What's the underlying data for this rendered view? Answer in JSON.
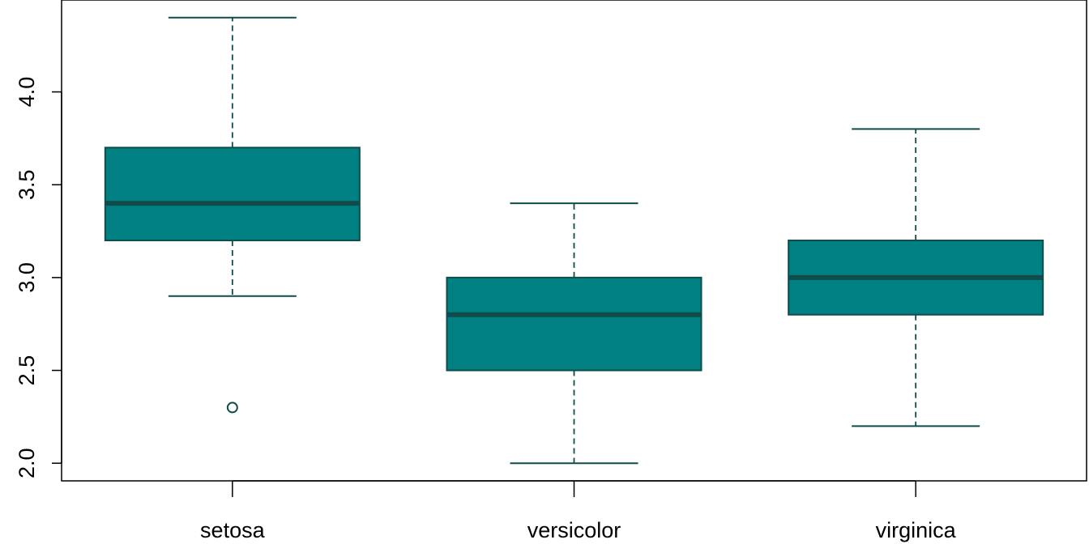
{
  "chart_data": {
    "type": "box",
    "title": "",
    "xlabel": "",
    "ylabel": "",
    "categories": [
      "setosa",
      "versicolor",
      "virginica"
    ],
    "ylim": [
      1.905,
      4.495
    ],
    "yticks": [
      2.0,
      2.5,
      3.0,
      3.5,
      4.0
    ],
    "ytick_labels": [
      "2.0",
      "2.5",
      "3.0",
      "3.5",
      "4.0"
    ],
    "boxes": [
      {
        "category": "setosa",
        "whisker_low": 2.9,
        "q1": 3.2,
        "median": 3.4,
        "q3": 3.7,
        "whisker_high": 4.4,
        "outliers": [
          2.3
        ]
      },
      {
        "category": "versicolor",
        "whisker_low": 2.0,
        "q1": 2.5,
        "median": 2.8,
        "q3": 3.0,
        "whisker_high": 3.4,
        "outliers": []
      },
      {
        "category": "virginica",
        "whisker_low": 2.2,
        "q1": 2.8,
        "median": 3.0,
        "q3": 3.2,
        "whisker_high": 3.8,
        "outliers": []
      }
    ],
    "colors": {
      "fill": "#008080",
      "stroke": "#0f4d4d",
      "median": "#0f4d4d"
    },
    "grid": false,
    "legend": "none"
  }
}
